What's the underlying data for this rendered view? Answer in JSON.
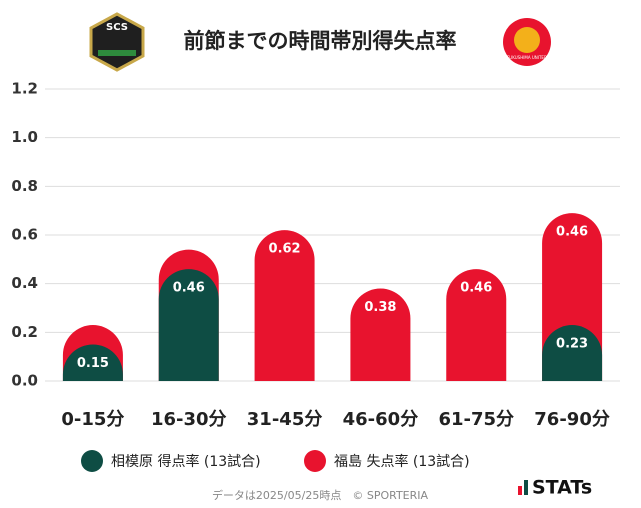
{
  "chart_data": {
    "type": "bar",
    "stacked": true,
    "title": "前節までの時間帯別得失点率",
    "logos": [
      "SCS",
      "FUKUSHIMA UNITED"
    ],
    "categories": [
      "0-15分",
      "16-30分",
      "31-45分",
      "46-60分",
      "61-75分",
      "76-90分"
    ],
    "series": [
      {
        "name": "相模原 得点率 (13試合)",
        "color": "#0e4d44",
        "values": [
          0.15,
          0.46,
          0,
          0,
          0,
          0.23
        ],
        "value_labels": [
          "0.15",
          "0.46",
          null,
          null,
          null,
          "0.23"
        ]
      },
      {
        "name": "福島 失点率 (13試合)",
        "color": "#e8132e",
        "values": [
          0.08,
          0.08,
          0.62,
          0.38,
          0.46,
          0.46
        ],
        "value_labels": [
          null,
          null,
          "0.62",
          "0.38",
          "0.46",
          "0.46"
        ]
      }
    ],
    "ylim": [
      0,
      1.2
    ],
    "yticks": [
      {
        "value": 0,
        "label": "0.0"
      },
      {
        "value": 0.2,
        "label": "0.2"
      },
      {
        "value": 0.4,
        "label": "0.4"
      },
      {
        "value": 0.6,
        "label": "0.6"
      },
      {
        "value": 0.8,
        "label": "0.8"
      },
      {
        "value": 1,
        "label": "1.0"
      },
      {
        "value": 1.2,
        "label": "1.2"
      }
    ],
    "grid": true,
    "footer": "データは2025/05/25時点　© SPORTERIA",
    "brand": "STATs"
  }
}
